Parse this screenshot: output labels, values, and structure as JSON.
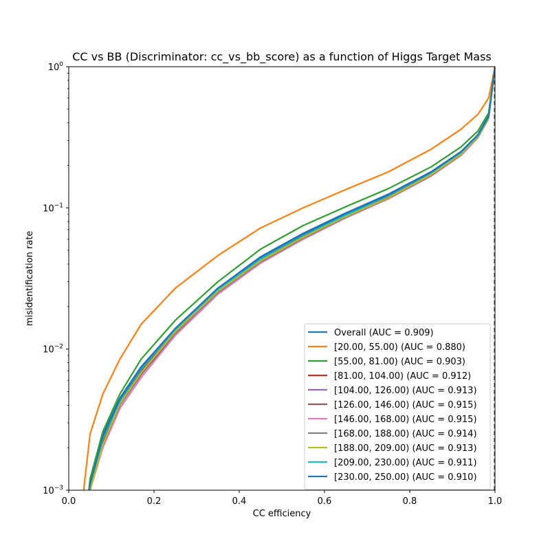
{
  "chart_data": {
    "type": "line",
    "title": "CC vs BB (Discriminator: cc_vs_bb_score) as a function of Higgs Target Mass",
    "xlabel": "CC efficiency",
    "ylabel": "misidentification rate",
    "xlim": [
      0.0,
      1.0
    ],
    "ylim": [
      0.001,
      1.0
    ],
    "yscale": "log",
    "grid": false,
    "legend_position": "lower-right",
    "x_ticks": [
      "0.0",
      "0.2",
      "0.4",
      "0.6",
      "0.8",
      "1.0"
    ],
    "y_ticks": [
      {
        "value": 0.001,
        "base": "10",
        "exp": "−3"
      },
      {
        "value": 0.01,
        "base": "10",
        "exp": "−2"
      },
      {
        "value": 0.1,
        "base": "10",
        "exp": "−1"
      },
      {
        "value": 1.0,
        "base": "10",
        "exp": "0"
      }
    ],
    "reference_line": {
      "x": 1.0,
      "style": "dashed"
    },
    "x": [
      0.035,
      0.05,
      0.08,
      0.12,
      0.17,
      0.25,
      0.35,
      0.45,
      0.55,
      0.65,
      0.75,
      0.85,
      0.92,
      0.96,
      0.985,
      1.0
    ],
    "series": [
      {
        "name": "Overall (AUC = 0.909)",
        "color": "#1f77b4",
        "values": [
          null,
          0.0011,
          0.0025,
          0.0045,
          0.0075,
          0.014,
          0.027,
          0.045,
          0.066,
          0.092,
          0.125,
          0.18,
          0.25,
          0.33,
          0.45,
          1.0
        ]
      },
      {
        "name": "[20.00, 55.00) (AUC = 0.880)",
        "color": "#ff7f0e",
        "values": [
          0.001,
          0.0025,
          0.0048,
          0.0085,
          0.015,
          0.027,
          0.046,
          0.072,
          0.1,
          0.135,
          0.18,
          0.26,
          0.36,
          0.46,
          0.6,
          1.0
        ]
      },
      {
        "name": "[55.00, 81.00) (AUC = 0.903)",
        "color": "#2ca02c",
        "values": [
          null,
          0.0012,
          0.0026,
          0.0048,
          0.0085,
          0.016,
          0.03,
          0.051,
          0.075,
          0.102,
          0.137,
          0.195,
          0.27,
          0.35,
          0.47,
          1.0
        ]
      },
      {
        "name": "[81.00, 104.00) (AUC = 0.912)",
        "color": "#d62728",
        "values": [
          null,
          0.001,
          0.0022,
          0.0042,
          0.007,
          0.0135,
          0.026,
          0.043,
          0.063,
          0.088,
          0.12,
          0.175,
          0.245,
          0.325,
          0.44,
          1.0
        ]
      },
      {
        "name": "[104.00, 126.00) (AUC = 0.913)",
        "color": "#9467bd",
        "values": [
          null,
          0.001,
          0.0021,
          0.0041,
          0.0068,
          0.0132,
          0.0255,
          0.042,
          0.062,
          0.087,
          0.118,
          0.172,
          0.24,
          0.32,
          0.435,
          1.0
        ]
      },
      {
        "name": "[126.00, 146.00) (AUC = 0.915)",
        "color": "#8c564b",
        "values": [
          null,
          0.001,
          0.0021,
          0.004,
          0.0066,
          0.0128,
          0.025,
          0.041,
          0.06,
          0.085,
          0.116,
          0.168,
          0.235,
          0.315,
          0.43,
          1.0
        ]
      },
      {
        "name": "[146.00, 168.00) (AUC = 0.915)",
        "color": "#e377c2",
        "values": [
          null,
          0.001,
          0.002,
          0.0038,
          0.0063,
          0.0125,
          0.0245,
          0.0405,
          0.06,
          0.085,
          0.116,
          0.168,
          0.235,
          0.315,
          0.43,
          1.0
        ]
      },
      {
        "name": "[168.00, 188.00) (AUC = 0.914)",
        "color": "#7f7f7f",
        "values": [
          null,
          0.001,
          0.0021,
          0.004,
          0.0067,
          0.013,
          0.0252,
          0.0415,
          0.061,
          0.086,
          0.117,
          0.17,
          0.238,
          0.318,
          0.432,
          1.0
        ]
      },
      {
        "name": "[188.00, 209.00) (AUC = 0.913)",
        "color": "#bcbd22",
        "values": [
          null,
          0.001,
          0.0021,
          0.0041,
          0.0068,
          0.0133,
          0.0257,
          0.0422,
          0.062,
          0.087,
          0.118,
          0.172,
          0.24,
          0.32,
          0.435,
          1.0
        ]
      },
      {
        "name": "[209.00, 230.00) (AUC = 0.911)",
        "color": "#17becf",
        "values": [
          null,
          0.0011,
          0.0023,
          0.0043,
          0.0072,
          0.0138,
          0.0265,
          0.0435,
          0.064,
          0.089,
          0.122,
          0.177,
          0.247,
          0.327,
          0.442,
          1.0
        ]
      },
      {
        "name": "[230.00, 250.00) (AUC = 0.910)",
        "color": "#1f77b4",
        "values": [
          null,
          0.0011,
          0.0024,
          0.0044,
          0.0074,
          0.014,
          0.027,
          0.0445,
          0.065,
          0.091,
          0.124,
          0.179,
          0.249,
          0.329,
          0.445,
          1.0
        ]
      }
    ]
  }
}
